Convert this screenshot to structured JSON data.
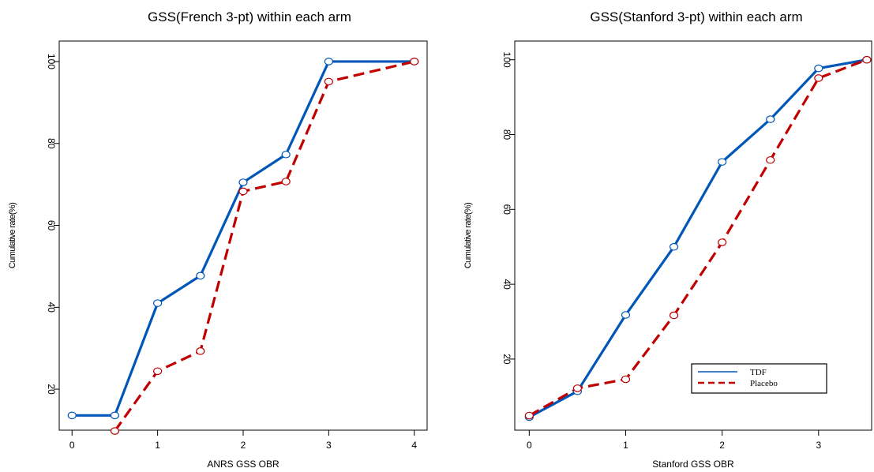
{
  "chart_data": [
    {
      "type": "line",
      "title": "GSS(French 3-pt) within each arm",
      "xlabel": "ANRS GSS OBR",
      "ylabel": "Cumulative rate(%)",
      "xlim": [
        -0.15,
        4.15
      ],
      "ylim": [
        10,
        105
      ],
      "xticks": [
        0,
        1,
        2,
        3,
        4
      ],
      "yticks": [
        20,
        40,
        60,
        80,
        100
      ],
      "grid": false,
      "series": [
        {
          "name": "TDF",
          "color": "#0057b8",
          "dash": "solid",
          "x": [
            0,
            0.5,
            1,
            1.5,
            2,
            2.5,
            3,
            4
          ],
          "y": [
            13.6,
            13.6,
            41.0,
            47.7,
            70.5,
            77.3,
            100.0,
            100.0
          ]
        },
        {
          "name": "Placebo",
          "color": "#c00000",
          "dash": "dashed",
          "x": [
            0.5,
            1,
            1.5,
            2,
            2.5,
            3,
            4
          ],
          "y": [
            9.8,
            24.4,
            29.3,
            68.3,
            70.7,
            95.1,
            100.0
          ]
        }
      ]
    },
    {
      "type": "line",
      "title": "GSS(Stanford 3-pt) within each arm",
      "xlabel": "Stanford GSS OBR",
      "ylabel": "Cumulative rate(%)",
      "xlim": [
        -0.15,
        3.55
      ],
      "ylim": [
        1,
        105
      ],
      "xticks": [
        0,
        1,
        2,
        3
      ],
      "yticks": [
        20,
        40,
        60,
        80,
        100
      ],
      "grid": false,
      "legend": {
        "position": "bottom-right",
        "entries": [
          "TDF",
          "Placebo"
        ]
      },
      "series": [
        {
          "name": "TDF",
          "color": "#0057b8",
          "dash": "solid",
          "x": [
            0,
            0.5,
            1,
            1.5,
            2,
            2.5,
            3,
            3.5
          ],
          "y": [
            4.5,
            11.4,
            31.8,
            50.0,
            72.7,
            84.1,
            97.7,
            100.0
          ]
        },
        {
          "name": "Placebo",
          "color": "#c00000",
          "dash": "dashed",
          "x": [
            0,
            0.5,
            1,
            1.5,
            2,
            2.5,
            3,
            3.5
          ],
          "y": [
            4.9,
            12.2,
            14.6,
            31.7,
            51.2,
            73.2,
            95.1,
            100.0
          ]
        }
      ]
    }
  ]
}
